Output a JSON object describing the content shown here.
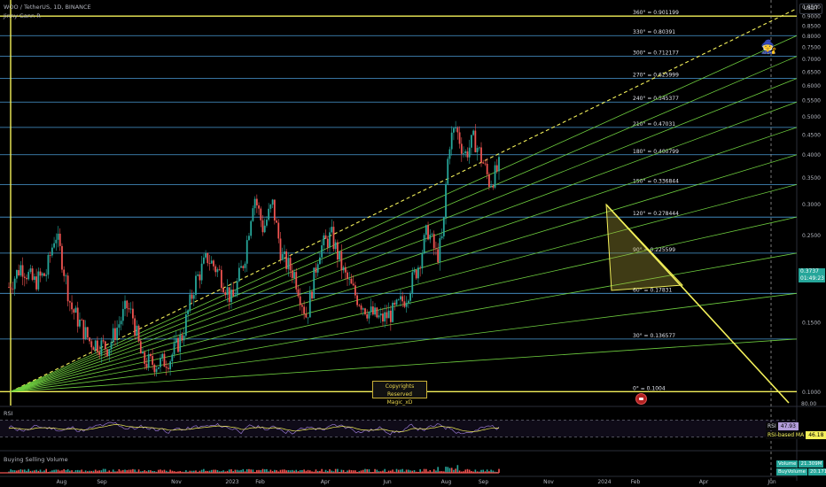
{
  "header": {
    "symbol_line": "WOO / TetherUS, 1D, BINANCE",
    "indicator_line": "Jinny Gann R",
    "currency": "USDT"
  },
  "overlays": {
    "copyright_line1": "Copyrights Reserved",
    "copyright_line2": "Magic_xD",
    "wizard_icon": "wizard-emoji",
    "logo_icon": "logo-badge"
  },
  "price_tag": {
    "price": "0.3737",
    "countdown": "01:49:23"
  },
  "rsi_panel": {
    "title": "RSI",
    "axis_label": "80.00",
    "rsi_label": "RSI",
    "rsi_value": "47.93",
    "ma_label": "RSI-based MA",
    "ma_value": "46.18"
  },
  "volume_panel": {
    "title": "Buying Selling Volume",
    "volume_label": "Volume",
    "volume_value": "21.309M",
    "buy_label": "BuyVolume",
    "buy_value": "20.171M"
  },
  "colors": {
    "level_line": "#4a9bd6",
    "gann_green": "#6fcf3f",
    "yellow": "#f3f05a",
    "candle_up": "#26a69a",
    "candle_down": "#ef5350"
  },
  "chart_data": {
    "type": "candlestick",
    "x_ticks": [
      "Aug",
      "Sep",
      "Nov",
      "2023",
      "Feb",
      "Apr",
      "Jun",
      "Aug",
      "Sep",
      "Nov",
      "2024",
      "Feb",
      "Apr",
      "Jun"
    ],
    "y_axis": {
      "scale": "log",
      "range": [
        0.095,
        0.99
      ],
      "ticks": [
        "0.9500",
        "0.9000",
        "0.8500",
        "0.8000",
        "0.7500",
        "0.7000",
        "0.6500",
        "0.6000",
        "0.5500",
        "0.5000",
        "0.4500",
        "0.4000",
        "0.3500",
        "0.3000",
        "0.2500",
        "0.2000",
        "0.1500",
        "0.1000"
      ]
    },
    "gann_levels": [
      {
        "label": "360° = 0.901199",
        "price": 0.901199
      },
      {
        "label": "330° = 0.80391",
        "price": 0.80391
      },
      {
        "label": "300° = 0.712177",
        "price": 0.712177
      },
      {
        "label": "270° = 0.625999",
        "price": 0.625999
      },
      {
        "label": "240° = 0.545377",
        "price": 0.545377
      },
      {
        "label": "210° = 0.47031",
        "price": 0.47031
      },
      {
        "label": "180° = 0.400799",
        "price": 0.400799
      },
      {
        "label": "150° = 0.336844",
        "price": 0.336844
      },
      {
        "label": "120° = 0.278444",
        "price": 0.278444
      },
      {
        "label": "90° = 0.225599",
        "price": 0.225599
      },
      {
        "label": "60° = 0.17831",
        "price": 0.17831
      },
      {
        "label": "30° = 0.136577",
        "price": 0.136577
      },
      {
        "label": "0° = 0.1004",
        "price": 0.1004
      }
    ],
    "price_path": [
      [
        0.14,
        0.185
      ],
      [
        0.02,
        0.21
      ],
      [
        0.04,
        0.19
      ],
      [
        0.06,
        0.2
      ],
      [
        0.075,
        0.255
      ],
      [
        0.085,
        0.22
      ],
      [
        0.1,
        0.165
      ],
      [
        0.13,
        0.135
      ],
      [
        0.16,
        0.13
      ],
      [
        0.19,
        0.165
      ],
      [
        0.2,
        0.155
      ],
      [
        0.215,
        0.12
      ],
      [
        0.24,
        0.118
      ],
      [
        0.26,
        0.122
      ],
      [
        0.28,
        0.14
      ],
      [
        0.3,
        0.19
      ],
      [
        0.32,
        0.22
      ],
      [
        0.34,
        0.2
      ],
      [
        0.36,
        0.17
      ],
      [
        0.38,
        0.22
      ],
      [
        0.395,
        0.32
      ],
      [
        0.41,
        0.26
      ],
      [
        0.425,
        0.3
      ],
      [
        0.44,
        0.22
      ],
      [
        0.46,
        0.2
      ],
      [
        0.48,
        0.155
      ],
      [
        0.5,
        0.23
      ],
      [
        0.52,
        0.25
      ],
      [
        0.54,
        0.2
      ],
      [
        0.56,
        0.175
      ],
      [
        0.58,
        0.16
      ],
      [
        0.6,
        0.153
      ],
      [
        0.62,
        0.16
      ],
      [
        0.64,
        0.175
      ],
      [
        0.66,
        0.21
      ],
      [
        0.675,
        0.26
      ],
      [
        0.69,
        0.22
      ],
      [
        0.7,
        0.25
      ],
      [
        0.705,
        0.35
      ],
      [
        0.71,
        0.43
      ],
      [
        0.72,
        0.47
      ],
      [
        0.735,
        0.4
      ],
      [
        0.75,
        0.44
      ],
      [
        0.765,
        0.38
      ],
      [
        0.775,
        0.34
      ],
      [
        0.785,
        0.36
      ],
      [
        0.79,
        0.3737
      ]
    ]
  }
}
